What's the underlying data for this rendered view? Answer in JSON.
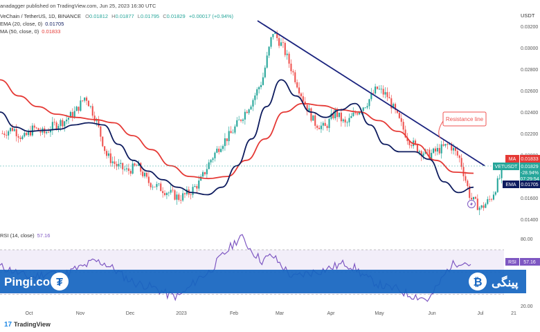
{
  "header": {
    "published": "anadagger published on TradingView.com, Jun 25, 2023 16:30 UTC",
    "symbol": "VeChain / TetherUS, 1D, BINANCE",
    "ohlc": {
      "O": "0.01812",
      "H": "0.01877",
      "L": "0.01795",
      "C": "0.01829",
      "change": "+0.00017 (+0.94%)"
    },
    "ema_label": "EMA (20, close, 0)",
    "ema_value": "0.01705",
    "ma_label": "MA (50, close, 0)",
    "ma_value": "0.01833",
    "rsi_label": "RSI (14, close)",
    "rsi_value": "57.16",
    "currency": "USDT"
  },
  "annotation": {
    "resistance": "Resistance line"
  },
  "price_tags": {
    "ma": {
      "label": "MA",
      "value": "0.01833"
    },
    "symbol": {
      "label": "VETUSDT",
      "value": "0.01829",
      "change": "-28.94%",
      "timer": "07:29:54"
    },
    "ema": {
      "label": "EMA",
      "value": "0.01705"
    },
    "rsi": {
      "label": "RSI",
      "value": "57.16"
    }
  },
  "watermarks": {
    "left": "Pingi.co",
    "right": "پینگی"
  },
  "footer": {
    "brand": "TradingView"
  },
  "colors": {
    "up": "#26a69a",
    "down": "#ef5350",
    "ema": "#0d1b5e",
    "ma": "#e53935",
    "rsi": "#7e57c2",
    "trendline": "#1a237e",
    "banner": "#1565c0"
  },
  "chart_data": {
    "type": "candlestick",
    "series_close_samples": [
      0.022,
      0.0225,
      0.0215,
      0.0225,
      0.022,
      0.0228,
      0.0232,
      0.024,
      0.0255,
      0.0233,
      0.02,
      0.019,
      0.0185,
      0.019,
      0.0175,
      0.017,
      0.0165,
      0.016,
      0.0165,
      0.0175,
      0.0195,
      0.021,
      0.022,
      0.0235,
      0.025,
      0.027,
      0.0315,
      0.03,
      0.0275,
      0.025,
      0.023,
      0.0225,
      0.024,
      0.0228,
      0.024,
      0.0248,
      0.0262,
      0.0255,
      0.0235,
      0.0215,
      0.0205,
      0.02,
      0.0205,
      0.021,
      0.0196,
      0.016,
      0.015,
      0.016,
      0.0183
    ],
    "ema_samples": [
      0.024,
      0.0226,
      0.0222,
      0.0223,
      0.0224,
      0.0228,
      0.023,
      0.0228,
      0.021,
      0.0195,
      0.0185,
      0.0177,
      0.017,
      0.0165,
      0.0163,
      0.017,
      0.019,
      0.0215,
      0.0245,
      0.027,
      0.0255,
      0.024,
      0.0235,
      0.0242,
      0.0248,
      0.0228,
      0.021,
      0.0203,
      0.0203,
      0.0196,
      0.0175,
      0.0165,
      0.017
    ],
    "ma_samples": [
      0.027,
      0.0255,
      0.0245,
      0.0238,
      0.0235,
      0.0233,
      0.023,
      0.0218,
      0.0205,
      0.019,
      0.018,
      0.0178,
      0.018,
      0.0195,
      0.0215,
      0.024,
      0.0248,
      0.0246,
      0.0242,
      0.024,
      0.0232,
      0.0222,
      0.021,
      0.0195,
      0.0184,
      0.0183
    ],
    "rsi_samples": [
      55,
      52,
      48,
      45,
      48,
      50,
      46,
      52,
      55,
      60,
      58,
      52,
      45,
      40,
      38,
      35,
      30,
      28,
      35,
      45,
      50,
      62,
      72,
      82,
      70,
      60,
      65,
      55,
      45,
      48,
      50,
      52,
      55,
      58,
      53,
      45,
      40,
      36,
      35,
      30,
      28,
      25,
      40,
      55,
      60,
      57
    ],
    "trendline": {
      "start": {
        "date": "Feb 21",
        "price": 0.0325
      },
      "end": {
        "date": "Jun 27",
        "price": 0.019
      }
    },
    "price_axis": {
      "ticks": [
        "0.03200",
        "0.03000",
        "0.02800",
        "0.02600",
        "0.02400",
        "0.02200",
        "0.02000",
        "0.01600",
        "0.01400"
      ],
      "ylim": [
        0.0135,
        0.0325
      ]
    },
    "rsi_axis": {
      "ticks": [
        "80.00",
        "60.00",
        "20.00"
      ],
      "ylim": [
        15,
        88
      ]
    },
    "x_ticks": [
      "Oct",
      "Nov",
      "Dec",
      "2023",
      "Feb",
      "Mar",
      "Apr",
      "May",
      "Jun",
      "Jul",
      "21"
    ]
  }
}
